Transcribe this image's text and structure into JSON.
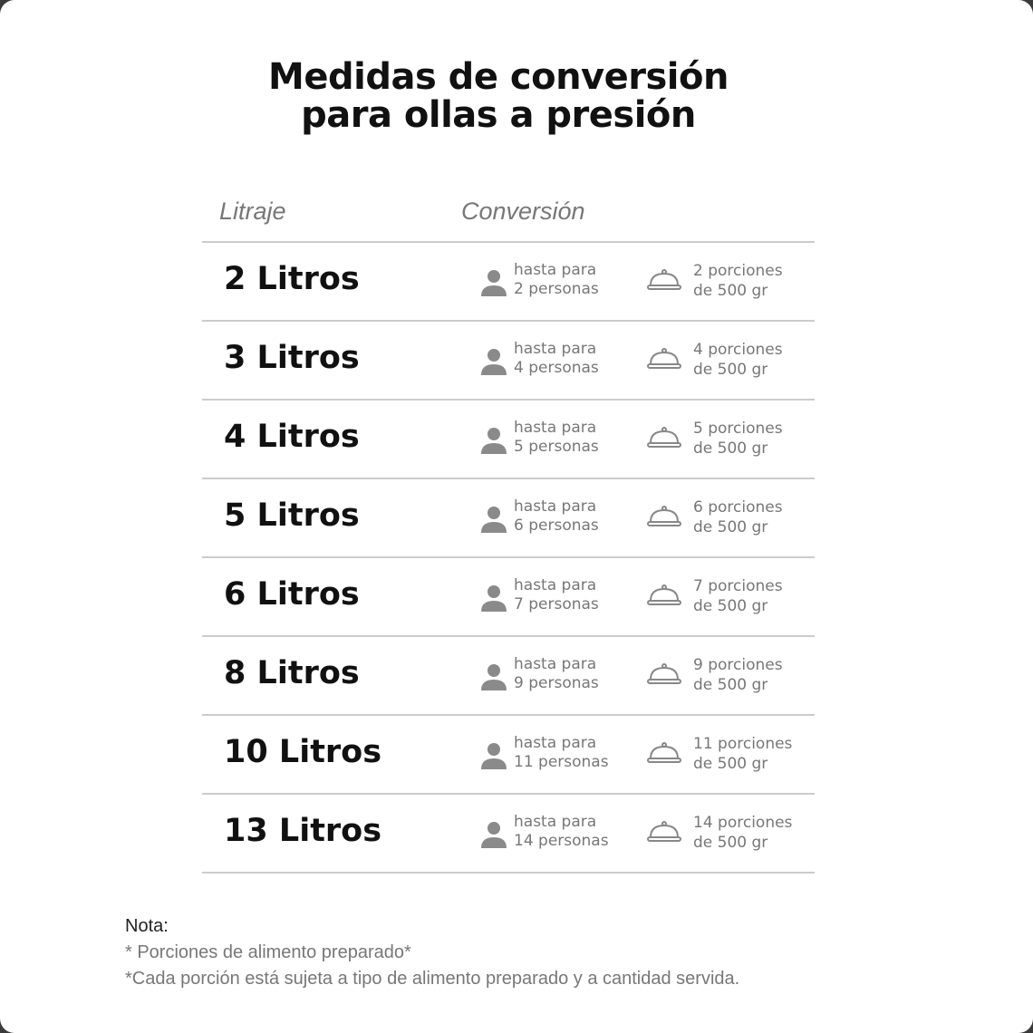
{
  "title": [
    "Medidas de conversión",
    "para ollas a presión"
  ],
  "headers": {
    "litraje": "Litraje",
    "conversion": "Conversión"
  },
  "rows": [
    {
      "litros": "2 Litros",
      "personas": [
        "hasta para",
        "2 personas"
      ],
      "porciones": [
        "2 porciones",
        "de 500 gr"
      ]
    },
    {
      "litros": "3 Litros",
      "personas": [
        "hasta para",
        "4 personas"
      ],
      "porciones": [
        "4 porciones",
        "de 500 gr"
      ]
    },
    {
      "litros": "4 Litros",
      "personas": [
        "hasta para",
        "5 personas"
      ],
      "porciones": [
        "5 porciones",
        "de 500 gr"
      ]
    },
    {
      "litros": "5 Litros",
      "personas": [
        "hasta para",
        "6 personas"
      ],
      "porciones": [
        "6 porciones",
        "de 500 gr"
      ]
    },
    {
      "litros": "6 Litros",
      "personas": [
        "hasta para",
        "7 personas"
      ],
      "porciones": [
        "7 porciones",
        "de 500 gr"
      ]
    },
    {
      "litros": "8 Litros",
      "personas": [
        "hasta para",
        "9 personas"
      ],
      "porciones": [
        "9 porciones",
        "de 500 gr"
      ]
    },
    {
      "litros": "10 Litros",
      "personas": [
        "hasta para",
        "11 personas"
      ],
      "porciones": [
        "11 porciones",
        "de 500 gr"
      ]
    },
    {
      "litros": "13 Litros",
      "personas": [
        "hasta para",
        "14 personas"
      ],
      "porciones": [
        "14 porciones",
        "de 500 gr"
      ]
    }
  ],
  "icons": {
    "person": "person-icon",
    "portion": "serving-cloche-icon"
  },
  "note": {
    "label": "Nota:",
    "lines": [
      "* Porciones de alimento preparado*",
      "*Cada porción está sujeta a tipo de alimento preparado y a cantidad servida."
    ]
  }
}
